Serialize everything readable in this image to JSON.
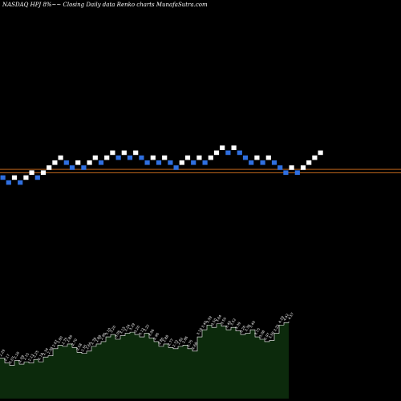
{
  "header": {
    "text": "NASDAQ HPJ 8%~~  Closing Daily data  Renko  charts MunafaSutra.com"
  },
  "chart_data": {
    "type": "renko",
    "title": "NASDAQ HPJ 8%~~  Closing Daily data  Renko  charts MunafaSutra.com",
    "colors": {
      "up_brick": "#ffffff",
      "down_brick": "#2f6fe0",
      "reference_line": "#b8621b",
      "volume_fill": "#0c2a0c",
      "volume_line": "#ffffff",
      "background": "#000000"
    },
    "bricks": [
      {
        "level": 0,
        "dir": "down"
      },
      {
        "level": -1,
        "dir": "down"
      },
      {
        "level": 0,
        "dir": "up"
      },
      {
        "level": -1,
        "dir": "down"
      },
      {
        "level": 0,
        "dir": "up"
      },
      {
        "level": 1,
        "dir": "up"
      },
      {
        "level": 0,
        "dir": "down"
      },
      {
        "level": 1,
        "dir": "up"
      },
      {
        "level": 2,
        "dir": "up"
      },
      {
        "level": 3,
        "dir": "up"
      },
      {
        "level": 4,
        "dir": "up"
      },
      {
        "level": 3,
        "dir": "down"
      },
      {
        "level": 2,
        "dir": "down"
      },
      {
        "level": 3,
        "dir": "up"
      },
      {
        "level": 2,
        "dir": "down"
      },
      {
        "level": 3,
        "dir": "up"
      },
      {
        "level": 4,
        "dir": "up"
      },
      {
        "level": 3,
        "dir": "down"
      },
      {
        "level": 4,
        "dir": "up"
      },
      {
        "level": 5,
        "dir": "up"
      },
      {
        "level": 4,
        "dir": "down"
      },
      {
        "level": 5,
        "dir": "up"
      },
      {
        "level": 4,
        "dir": "down"
      },
      {
        "level": 5,
        "dir": "up"
      },
      {
        "level": 4,
        "dir": "down"
      },
      {
        "level": 3,
        "dir": "down"
      },
      {
        "level": 4,
        "dir": "up"
      },
      {
        "level": 3,
        "dir": "down"
      },
      {
        "level": 4,
        "dir": "up"
      },
      {
        "level": 3,
        "dir": "down"
      },
      {
        "level": 2,
        "dir": "down"
      },
      {
        "level": 3,
        "dir": "up"
      },
      {
        "level": 4,
        "dir": "up"
      },
      {
        "level": 3,
        "dir": "down"
      },
      {
        "level": 4,
        "dir": "up"
      },
      {
        "level": 3,
        "dir": "down"
      },
      {
        "level": 4,
        "dir": "up"
      },
      {
        "level": 5,
        "dir": "up"
      },
      {
        "level": 6,
        "dir": "up"
      },
      {
        "level": 5,
        "dir": "down"
      },
      {
        "level": 6,
        "dir": "up"
      },
      {
        "level": 5,
        "dir": "down"
      },
      {
        "level": 4,
        "dir": "down"
      },
      {
        "level": 3,
        "dir": "down"
      },
      {
        "level": 4,
        "dir": "up"
      },
      {
        "level": 3,
        "dir": "down"
      },
      {
        "level": 4,
        "dir": "up"
      },
      {
        "level": 3,
        "dir": "down"
      },
      {
        "level": 2,
        "dir": "down"
      },
      {
        "level": 1,
        "dir": "down"
      },
      {
        "level": 2,
        "dir": "up"
      },
      {
        "level": 1,
        "dir": "down"
      },
      {
        "level": 2,
        "dir": "up"
      },
      {
        "level": 3,
        "dir": "up"
      },
      {
        "level": 4,
        "dir": "up"
      },
      {
        "level": 5,
        "dir": "up"
      }
    ],
    "reference_levels": [
      2.2,
      1.5
    ],
    "volume": {
      "values": [
        34,
        30,
        28,
        32,
        29,
        31,
        30,
        33,
        31,
        35,
        36,
        42,
        45,
        44,
        46,
        43,
        39,
        38,
        40,
        44,
        46,
        48,
        52,
        54,
        50,
        53,
        55,
        56,
        54,
        52,
        55,
        51,
        48,
        44,
        46,
        43,
        42,
        44,
        45,
        42,
        40,
        52,
        58,
        62,
        60,
        63,
        61,
        58,
        60,
        57,
        54,
        55,
        58,
        52,
        50,
        48,
        49,
        55,
        62,
        64,
        65
      ],
      "labels": [
        "2.29",
        "2.17",
        "2.07",
        "2.20",
        "2.09",
        "2.15",
        "2.13",
        "2.25",
        "2.18",
        "2.34",
        "2.38",
        "2.67",
        "2.80",
        "2.75",
        "2.86",
        "2.70",
        "2.58",
        "2.55",
        "2.60",
        "2.78",
        "2.88",
        "2.96",
        "3.10",
        "3.20",
        "3.05",
        "3.15",
        "3.24",
        "3.29",
        "3.20",
        "3.12",
        "3.22",
        "3.06",
        "2.96",
        "2.80",
        "2.88",
        "2.77",
        "2.72",
        "2.82",
        "2.86",
        "2.75",
        "2.68",
        "3.16",
        "3.40",
        "3.59",
        "3.50",
        "3.64",
        "3.55",
        "3.40",
        "3.52",
        "3.39",
        "3.26",
        "3.30",
        "3.40",
        "3.15",
        "3.08",
        "2.97",
        "3.00",
        "3.25",
        "4.29",
        "4.42",
        "4.57"
      ]
    }
  }
}
